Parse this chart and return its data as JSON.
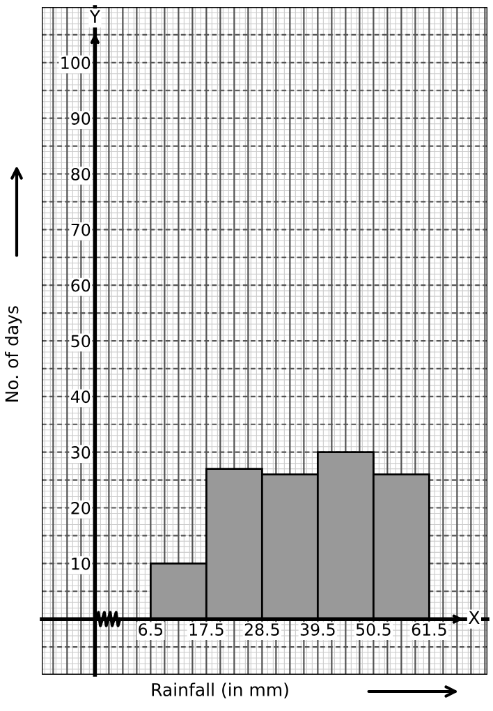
{
  "chart_data": {
    "type": "histogram",
    "xlabel": "Rainfall (in mm)",
    "ylabel": "No. of days",
    "bins": [
      6.5,
      17.5,
      28.5,
      39.5,
      50.5,
      61.5
    ],
    "values": [
      10,
      27,
      26,
      30,
      26
    ],
    "color": "#999999",
    "xlim": [
      -15,
      73
    ],
    "ylim": [
      -10,
      110
    ],
    "xticks": [
      6.5,
      17.5,
      28.5,
      39.5,
      50.5,
      61.5
    ],
    "yticks": [
      10,
      20,
      30,
      40,
      50,
      60,
      70,
      80,
      90,
      100
    ],
    "annotations": [
      "X",
      "Y"
    ],
    "grid": true
  }
}
